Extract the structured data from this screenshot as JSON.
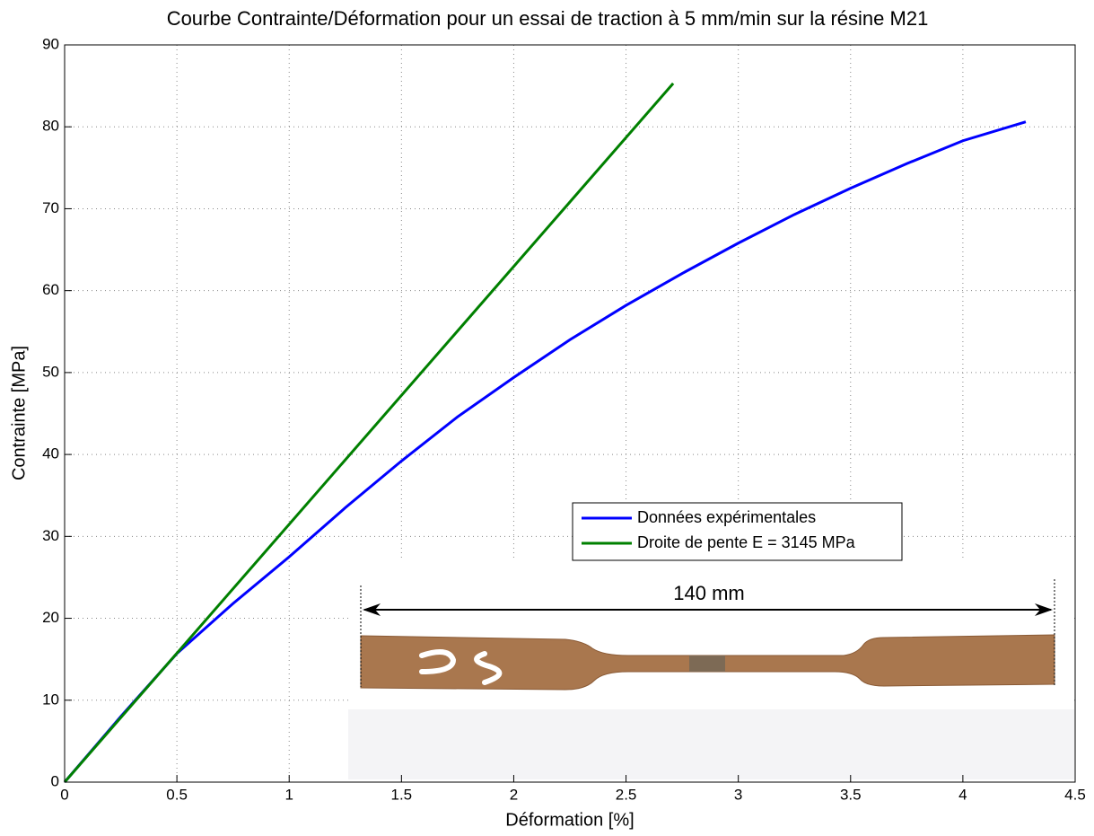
{
  "chart_data": {
    "type": "line",
    "title": "Courbe Contrainte/Déformation pour un essai de  traction à 5 mm/min sur la résine M21",
    "x_label": "Déformation [%]",
    "y_label": "Contrainte [MPa]",
    "xlim": [
      0,
      4.5
    ],
    "ylim": [
      0,
      90
    ],
    "xticks": [
      0,
      0.5,
      1,
      1.5,
      2,
      2.5,
      3,
      3.5,
      4,
      4.5
    ],
    "yticks": [
      0,
      10,
      20,
      30,
      40,
      50,
      60,
      70,
      80,
      90
    ],
    "grid": true,
    "legend": "center right",
    "series": [
      {
        "name": "Données expérimentales",
        "color": "#0000ff",
        "x": [
          0,
          0.25,
          0.5,
          0.75,
          1,
          1.25,
          1.5,
          1.75,
          2,
          2.25,
          2.5,
          2.75,
          3,
          3.25,
          3.5,
          3.75,
          4,
          4.28
        ],
        "values": [
          0,
          8.0,
          15.7,
          21.8,
          27.5,
          33.5,
          39.2,
          44.6,
          49.4,
          54,
          58.2,
          62.1,
          65.8,
          69.3,
          72.5,
          75.5,
          78.3,
          80.6
        ]
      },
      {
        "name": "Droite de pente E = 3145 MPa",
        "color": "#008000",
        "x": [
          0,
          2.71
        ],
        "values": [
          0,
          85.3
        ]
      }
    ],
    "annotations": [
      "140 mm"
    ]
  }
}
